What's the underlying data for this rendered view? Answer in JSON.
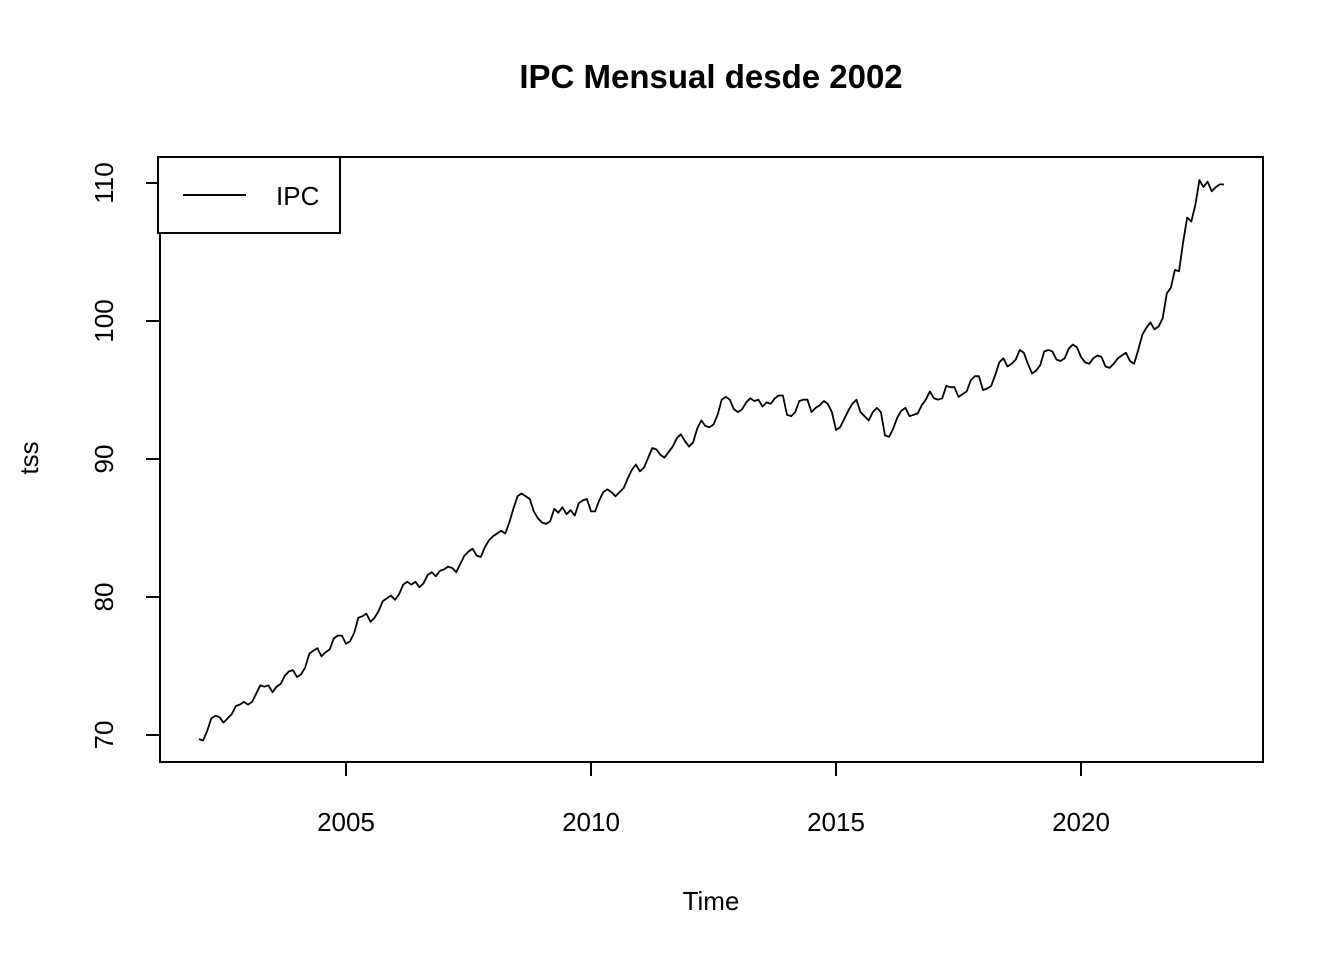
{
  "chart_data": {
    "type": "line",
    "title": "IPC Mensual desde 2002",
    "xlabel": "Time",
    "ylabel": "tss",
    "legend": [
      {
        "label": "IPC",
        "color": "#000000"
      }
    ],
    "legend_position": "topleft",
    "grid": false,
    "line_color": "#000000",
    "background_color": "#ffffff",
    "x_ticks": [
      2005,
      2010,
      2015,
      2020
    ],
    "y_ticks": [
      70,
      80,
      90,
      100,
      110
    ],
    "xlim": [
      2001.2,
      2023.7
    ],
    "ylim": [
      68.0,
      111.9
    ],
    "series": [
      {
        "name": "IPC",
        "start_year": 2002,
        "frequency_per_year": 12,
        "values": [
          69.7,
          69.6,
          70.3,
          71.2,
          71.4,
          71.3,
          70.9,
          71.2,
          71.5,
          72.1,
          72.2,
          72.4,
          72.2,
          72.4,
          73.0,
          73.6,
          73.5,
          73.6,
          73.1,
          73.5,
          73.7,
          74.3,
          74.6,
          74.7,
          74.2,
          74.4,
          74.9,
          75.9,
          76.1,
          76.3,
          75.7,
          76.0,
          76.2,
          77.0,
          77.2,
          77.2,
          76.6,
          76.8,
          77.4,
          78.5,
          78.6,
          78.8,
          78.2,
          78.5,
          79.0,
          79.7,
          79.9,
          80.1,
          79.8,
          80.2,
          80.9,
          81.1,
          80.9,
          81.1,
          80.7,
          81.0,
          81.6,
          81.8,
          81.5,
          81.9,
          82.0,
          82.2,
          82.1,
          81.8,
          82.4,
          83.0,
          83.3,
          83.5,
          83.0,
          82.9,
          83.6,
          84.1,
          84.4,
          84.6,
          84.8,
          84.6,
          85.4,
          86.4,
          87.3,
          87.5,
          87.3,
          87.1,
          86.2,
          85.7,
          85.4,
          85.3,
          85.5,
          86.4,
          86.1,
          86.5,
          86.0,
          86.3,
          85.9,
          86.8,
          87.0,
          87.1,
          86.2,
          86.2,
          87.0,
          87.6,
          87.8,
          87.6,
          87.3,
          87.6,
          87.9,
          88.6,
          89.2,
          89.6,
          89.1,
          89.4,
          90.1,
          90.8,
          90.7,
          90.3,
          90.1,
          90.5,
          90.9,
          91.5,
          91.8,
          91.3,
          90.9,
          91.2,
          92.2,
          92.8,
          92.4,
          92.3,
          92.5,
          93.2,
          94.3,
          94.5,
          94.3,
          93.6,
          93.4,
          93.6,
          94.1,
          94.4,
          94.2,
          94.3,
          93.8,
          94.1,
          94.0,
          94.4,
          94.6,
          94.6,
          93.2,
          93.1,
          93.4,
          94.2,
          94.3,
          94.3,
          93.4,
          93.7,
          93.9,
          94.2,
          94.0,
          93.4,
          92.1,
          92.3,
          92.9,
          93.5,
          94.0,
          94.3,
          93.4,
          93.1,
          92.8,
          93.4,
          93.7,
          93.4,
          91.7,
          91.6,
          92.2,
          93.0,
          93.5,
          93.7,
          93.1,
          93.2,
          93.3,
          93.9,
          94.3,
          94.9,
          94.4,
          94.3,
          94.4,
          95.3,
          95.2,
          95.2,
          94.5,
          94.7,
          94.9,
          95.7,
          96.0,
          96.0,
          95.0,
          95.1,
          95.3,
          96.1,
          97.0,
          97.3,
          96.7,
          96.9,
          97.2,
          97.9,
          97.7,
          96.9,
          96.2,
          96.4,
          96.8,
          97.8,
          97.9,
          97.8,
          97.2,
          97.1,
          97.3,
          98.0,
          98.3,
          98.1,
          97.4,
          97.0,
          96.9,
          97.3,
          97.5,
          97.4,
          96.7,
          96.6,
          96.9,
          97.3,
          97.5,
          97.7,
          97.1,
          96.9,
          97.9,
          99.0,
          99.5,
          99.9,
          99.4,
          99.6,
          100.2,
          102.0,
          102.4,
          103.7,
          103.6,
          105.7,
          107.5,
          107.2,
          108.4,
          110.2,
          109.7,
          110.1,
          109.4,
          109.7,
          109.9,
          109.9
        ]
      }
    ]
  }
}
